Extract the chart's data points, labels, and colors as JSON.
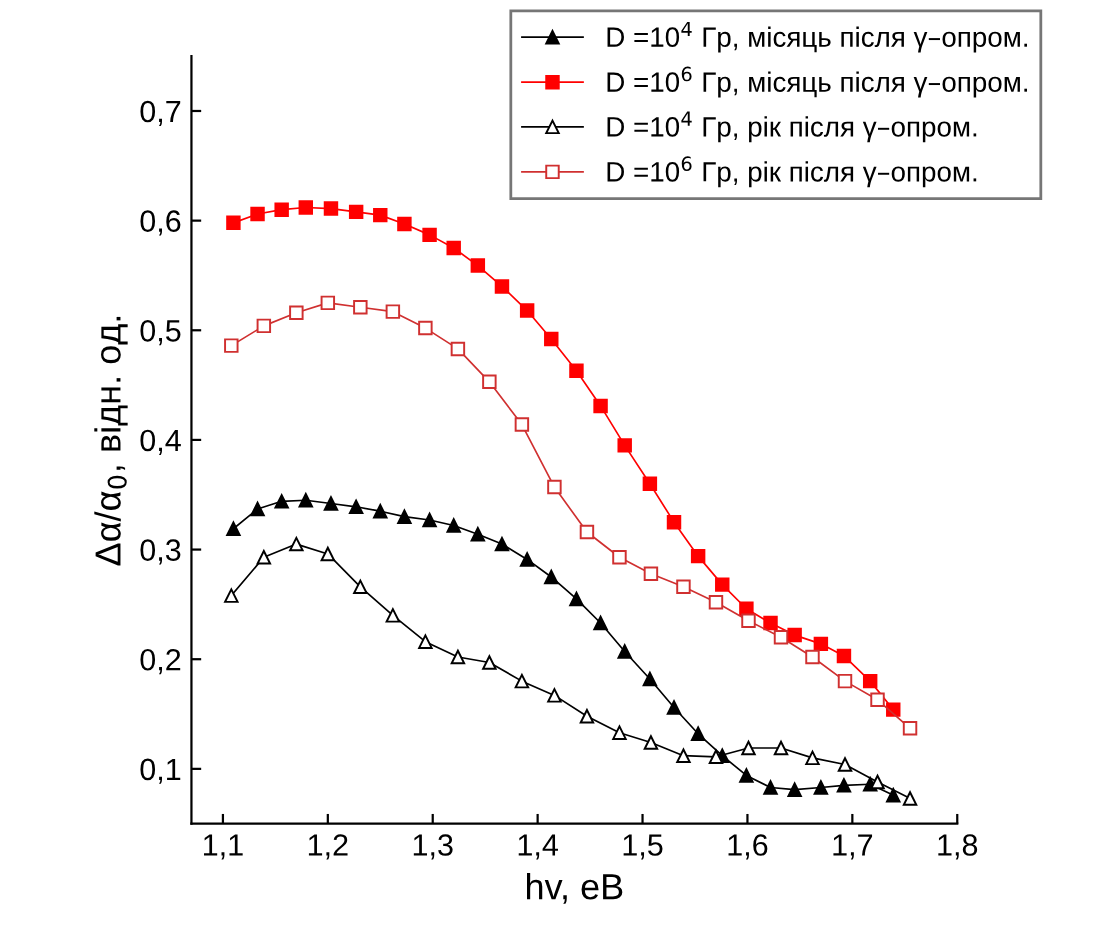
{
  "chart_data": {
    "type": "line",
    "xlabel": "hv, eB",
    "ylabel": "Δα/α$_{0}$, відн. од.",
    "xlim": [
      1.07,
      1.8
    ],
    "ylim": [
      0.05,
      0.75
    ],
    "xticks": [
      {
        "value": 1.1,
        "label": "1,1"
      },
      {
        "value": 1.2,
        "label": "1,2"
      },
      {
        "value": 1.3,
        "label": "1,3"
      },
      {
        "value": 1.4,
        "label": "1,4"
      },
      {
        "value": 1.5,
        "label": "1,5"
      },
      {
        "value": 1.6,
        "label": "1,6"
      },
      {
        "value": 1.7,
        "label": "1,7"
      },
      {
        "value": 1.8,
        "label": "1,8"
      }
    ],
    "yticks": [
      {
        "value": 0.1,
        "label": "0,1"
      },
      {
        "value": 0.2,
        "label": "0,2"
      },
      {
        "value": 0.3,
        "label": "0,3"
      },
      {
        "value": 0.4,
        "label": "0,4"
      },
      {
        "value": 0.5,
        "label": "0,5"
      },
      {
        "value": 0.6,
        "label": "0,6"
      },
      {
        "value": 0.7,
        "label": "0,7"
      }
    ],
    "grid": false,
    "legend": "top right",
    "series": [
      {
        "name": "D =10$^{4}$ Гр, місяць після γ–опром.",
        "color": "#000000",
        "marker": "triangle",
        "x": [
          1.11,
          1.133,
          1.156,
          1.179,
          1.203,
          1.227,
          1.25,
          1.273,
          1.297,
          1.32,
          1.343,
          1.366,
          1.39,
          1.413,
          1.437,
          1.46,
          1.483,
          1.507,
          1.53,
          1.553,
          1.576,
          1.599,
          1.622,
          1.645,
          1.67,
          1.692,
          1.717,
          1.739
        ],
        "values": [
          0.319,
          0.337,
          0.344,
          0.345,
          0.342,
          0.339,
          0.335,
          0.33,
          0.327,
          0.322,
          0.314,
          0.305,
          0.291,
          0.275,
          0.255,
          0.233,
          0.207,
          0.182,
          0.156,
          0.132,
          0.112,
          0.094,
          0.083,
          0.081,
          0.083,
          0.085,
          0.086,
          0.076
        ]
      },
      {
        "name": "D =10$^{6}$ Гр, місяць після γ–опром.",
        "color": "#ff0000",
        "marker": "square",
        "x": [
          1.11,
          1.133,
          1.156,
          1.179,
          1.203,
          1.227,
          1.25,
          1.273,
          1.297,
          1.32,
          1.343,
          1.366,
          1.39,
          1.413,
          1.437,
          1.46,
          1.483,
          1.507,
          1.53,
          1.553,
          1.576,
          1.599,
          1.622,
          1.645,
          1.67,
          1.692,
          1.717,
          1.739
        ],
        "values": [
          0.598,
          0.606,
          0.61,
          0.612,
          0.611,
          0.608,
          0.605,
          0.597,
          0.587,
          0.575,
          0.559,
          0.54,
          0.518,
          0.492,
          0.463,
          0.431,
          0.395,
          0.36,
          0.325,
          0.294,
          0.268,
          0.246,
          0.233,
          0.222,
          0.214,
          0.203,
          0.18,
          0.154
        ]
      },
      {
        "name": "D =10$^{4}$ Гр, рік після γ–опром.",
        "color": "#000000",
        "marker": "triangle",
        "x": [
          1.108,
          1.139,
          1.17,
          1.2,
          1.231,
          1.262,
          1.293,
          1.324,
          1.354,
          1.385,
          1.416,
          1.447,
          1.478,
          1.508,
          1.539,
          1.57,
          1.601,
          1.632,
          1.662,
          1.693,
          1.724,
          1.755
        ],
        "values": [
          0.258,
          0.293,
          0.305,
          0.296,
          0.266,
          0.24,
          0.216,
          0.202,
          0.197,
          0.18,
          0.167,
          0.148,
          0.133,
          0.124,
          0.112,
          0.111,
          0.119,
          0.119,
          0.11,
          0.104,
          0.088,
          0.073
        ]
      },
      {
        "name": "D =10$^{6}$ Гр, рік після γ–опром.",
        "color": "#d03030",
        "marker": "square",
        "x": [
          1.108,
          1.139,
          1.17,
          1.2,
          1.231,
          1.262,
          1.293,
          1.324,
          1.354,
          1.385,
          1.416,
          1.447,
          1.478,
          1.508,
          1.539,
          1.57,
          1.601,
          1.632,
          1.662,
          1.693,
          1.724,
          1.755
        ],
        "values": [
          0.486,
          0.504,
          0.516,
          0.525,
          0.521,
          0.517,
          0.502,
          0.483,
          0.453,
          0.414,
          0.357,
          0.316,
          0.293,
          0.278,
          0.266,
          0.252,
          0.235,
          0.22,
          0.202,
          0.18,
          0.163,
          0.137
        ]
      }
    ]
  }
}
